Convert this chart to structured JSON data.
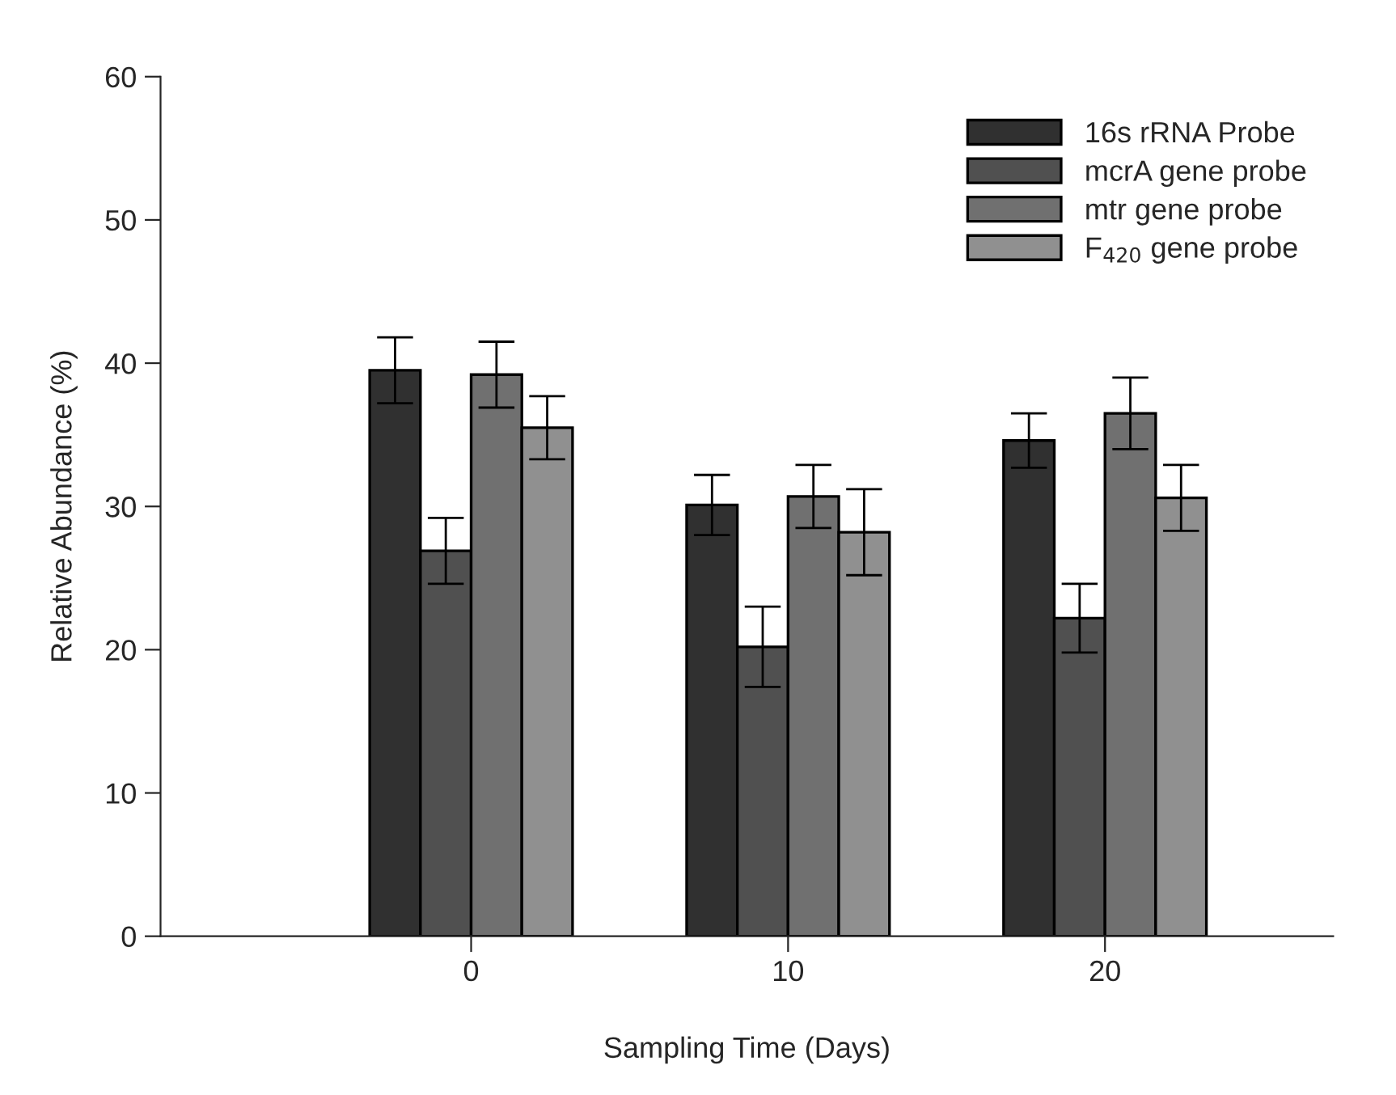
{
  "chart_data": {
    "type": "bar",
    "xlabel": "Sampling Time (Days)",
    "ylabel": "Relative Abundance (%)",
    "categories": [
      "0",
      "10",
      "20"
    ],
    "series": [
      {
        "name": "16s rRNA Probe",
        "color": "#303030",
        "values": [
          39.5,
          30.1,
          34.6
        ],
        "errors": [
          2.3,
          2.1,
          1.9
        ]
      },
      {
        "name": "mcrA gene probe",
        "color": "#505050",
        "values": [
          26.9,
          20.2,
          22.2
        ],
        "errors": [
          2.3,
          2.8,
          2.4
        ]
      },
      {
        "name": "mtr gene probe",
        "color": "#707070",
        "values": [
          39.2,
          30.7,
          36.5
        ],
        "errors": [
          2.3,
          2.2,
          2.5
        ]
      },
      {
        "name": "F$_{420}$ gene probe",
        "color": "#909090",
        "values": [
          35.5,
          28.2,
          30.6
        ],
        "errors": [
          2.2,
          3.0,
          2.3
        ]
      }
    ],
    "ylim": [
      0,
      60
    ],
    "yticks": [
      0,
      10,
      20,
      30,
      40,
      50,
      60
    ],
    "grid": false,
    "legend": "top right"
  }
}
